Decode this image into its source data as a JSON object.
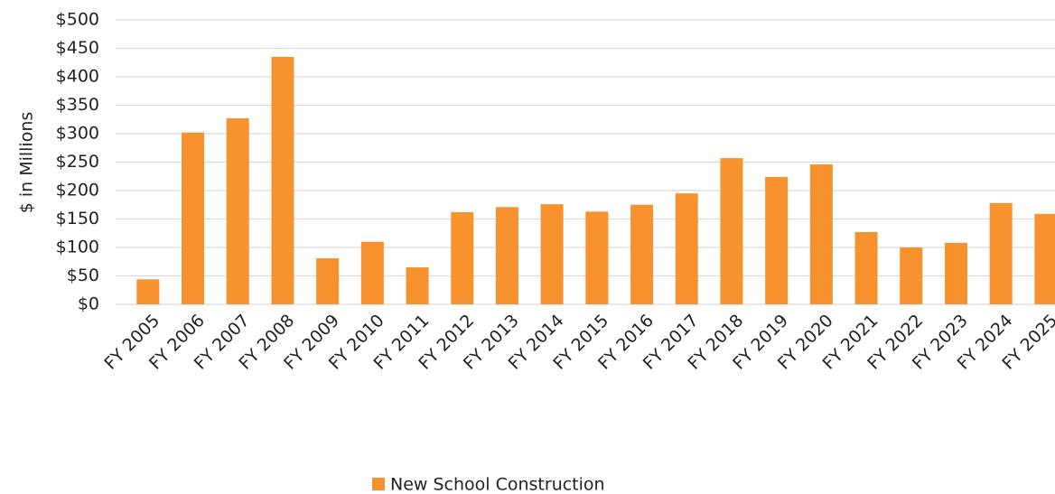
{
  "chart_data": {
    "type": "bar",
    "y_axis_label": "$ in Millions",
    "categories": [
      "FY 2005",
      "FY 2006",
      "FY 2007",
      "FY 2008",
      "FY 2009",
      "FY 2010",
      "FY 2011",
      "FY 2012",
      "FY 2013",
      "FY 2014",
      "FY 2015",
      "FY 2016",
      "FY 2017",
      "FY 2018",
      "FY 2019",
      "FY 2020",
      "FY 2021",
      "FY 2022",
      "FY 2023",
      "FY 2024",
      "FY 2025"
    ],
    "series": [
      {
        "name": "New School Construction",
        "color": "#f7922e",
        "values": [
          44,
          302,
          327,
          435,
          81,
          110,
          65,
          162,
          171,
          176,
          163,
          175,
          195,
          257,
          224,
          246,
          127,
          100,
          108,
          178,
          159
        ]
      }
    ],
    "ylim": [
      0,
      500
    ],
    "yticks": [
      {
        "value": 0,
        "label": "$0"
      },
      {
        "value": 50,
        "label": "$50"
      },
      {
        "value": 100,
        "label": "$100"
      },
      {
        "value": 150,
        "label": "$150"
      },
      {
        "value": 200,
        "label": "$200"
      },
      {
        "value": 250,
        "label": "$250"
      },
      {
        "value": 300,
        "label": "$300"
      },
      {
        "value": 350,
        "label": "$350"
      },
      {
        "value": 400,
        "label": "$400"
      },
      {
        "value": 450,
        "label": "$450"
      },
      {
        "value": 500,
        "label": "$500"
      }
    ],
    "grid": true,
    "legend": "bottom"
  }
}
